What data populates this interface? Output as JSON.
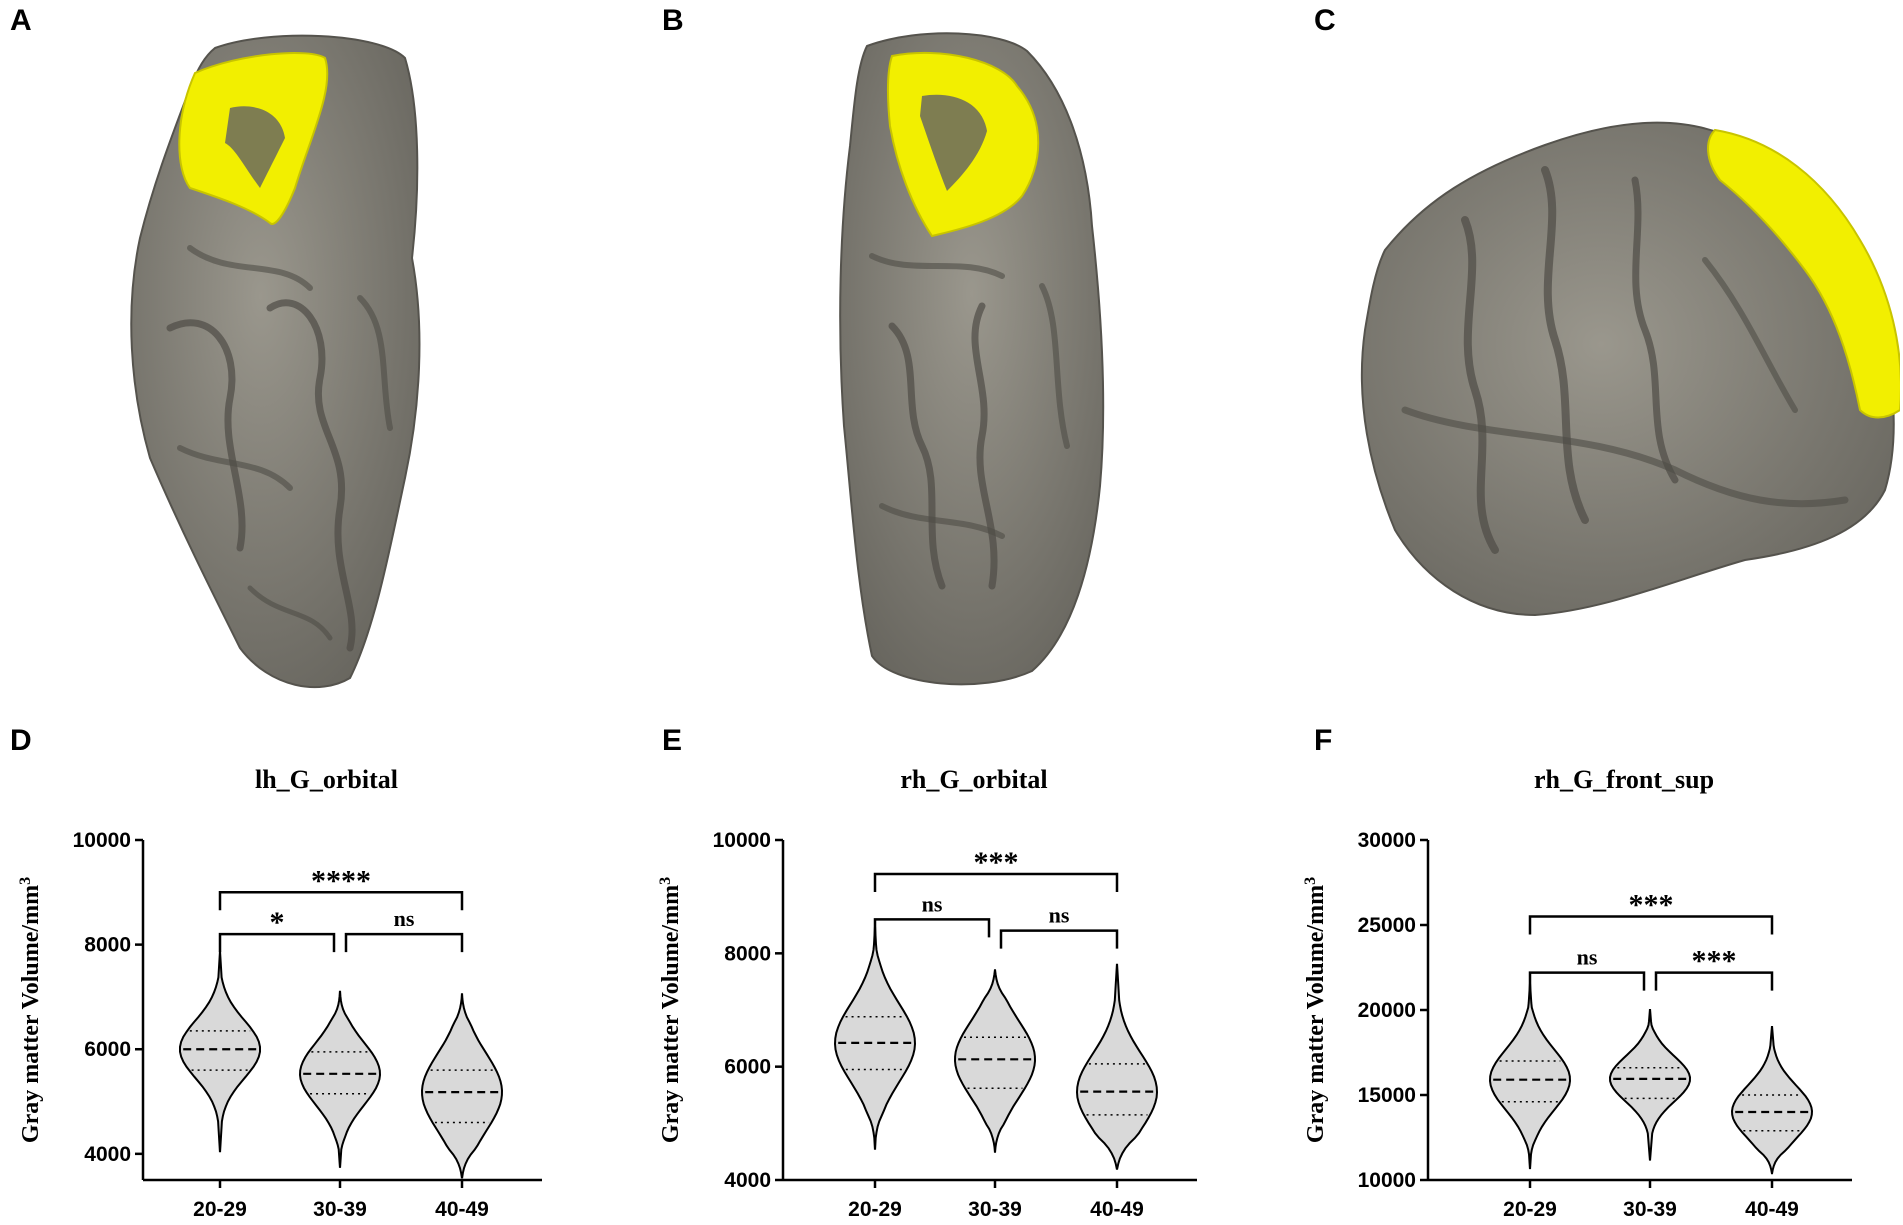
{
  "panels": {
    "A": "A",
    "B": "B",
    "C": "C",
    "D": "D",
    "E": "E",
    "F": "F"
  },
  "brain_colors": {
    "cortex": "#858279",
    "cortex_dark": "#5b5953",
    "highlight": "#f2ef00",
    "highlight_dark": "#c8c400"
  },
  "chart_data": [
    {
      "panel": "D",
      "type": "violin",
      "title": "lh_G_orbital",
      "ylabel": "Gray matter Volume/mm",
      "ylabel_sup": "3",
      "categories": [
        "20-29",
        "30-39",
        "40-49"
      ],
      "ylim": [
        3500,
        10000
      ],
      "yticks": [
        4000,
        6000,
        8000,
        10000
      ],
      "violins": [
        {
          "min": 4050,
          "max": 7850,
          "q1": 5600,
          "median": 6000,
          "q3": 6350
        },
        {
          "min": 3750,
          "max": 7100,
          "q1": 5150,
          "median": 5530,
          "q3": 5950
        },
        {
          "min": 3550,
          "max": 7050,
          "q1": 4600,
          "median": 5180,
          "q3": 5600
        }
      ],
      "brackets": [
        {
          "from": 0,
          "to": 2,
          "y": 9000,
          "label": "****"
        },
        {
          "from": 0,
          "to": 1,
          "y": 8200,
          "label": "*"
        },
        {
          "from": 1,
          "to": 2,
          "y": 8200,
          "label": "ns"
        }
      ]
    },
    {
      "panel": "E",
      "type": "violin",
      "title": "rh_G_orbital",
      "ylabel": "Gray matter Volume/mm",
      "ylabel_sup": "3",
      "categories": [
        "20-29",
        "30-39",
        "40-49"
      ],
      "ylim": [
        4000,
        10000
      ],
      "yticks": [
        4000,
        6000,
        8000,
        10000
      ],
      "violins": [
        {
          "min": 4550,
          "max": 8450,
          "q1": 5950,
          "median": 6420,
          "q3": 6880
        },
        {
          "min": 4500,
          "max": 7700,
          "q1": 5620,
          "median": 6130,
          "q3": 6520
        },
        {
          "min": 4200,
          "max": 7800,
          "q1": 5150,
          "median": 5560,
          "q3": 6050
        }
      ],
      "brackets": [
        {
          "from": 0,
          "to": 2,
          "y": 9400,
          "label": "***"
        },
        {
          "from": 0,
          "to": 1,
          "y": 8600,
          "label": "ns"
        },
        {
          "from": 1,
          "to": 2,
          "y": 8400,
          "label": "ns"
        }
      ]
    },
    {
      "panel": "F",
      "type": "violin",
      "title": "rh_G_front_sup",
      "ylabel": "Gray matter Volume/mm",
      "ylabel_sup": "3",
      "categories": [
        "20-29",
        "30-39",
        "40-49"
      ],
      "ylim": [
        10000,
        30000
      ],
      "yticks": [
        10000,
        15000,
        20000,
        25000,
        30000
      ],
      "violins": [
        {
          "min": 10700,
          "max": 21500,
          "q1": 14600,
          "median": 15900,
          "q3": 17000
        },
        {
          "min": 11200,
          "max": 20000,
          "q1": 14800,
          "median": 15950,
          "q3": 16600
        },
        {
          "min": 10400,
          "max": 19000,
          "q1": 12900,
          "median": 14000,
          "q3": 15000
        }
      ],
      "brackets": [
        {
          "from": 0,
          "to": 2,
          "y": 25500,
          "label": "***"
        },
        {
          "from": 0,
          "to": 1,
          "y": 22200,
          "label": "ns"
        },
        {
          "from": 1,
          "to": 2,
          "y": 22200,
          "label": "***"
        }
      ]
    }
  ]
}
